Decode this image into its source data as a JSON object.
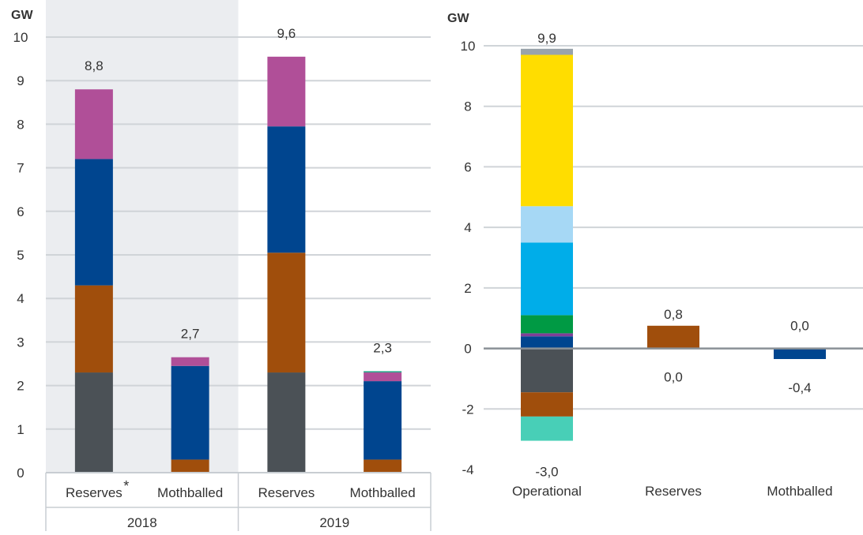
{
  "chart_data": [
    {
      "type": "bar",
      "stacked": true,
      "ylabel": "GW",
      "ylim": [
        0,
        10
      ],
      "yticks": [
        "0",
        "1",
        "2",
        "3",
        "4",
        "5",
        "6",
        "7",
        "8",
        "9",
        "10"
      ],
      "grid": true,
      "categories": [
        "Reserves",
        "Mothballed",
        "Reserves",
        "Mothballed"
      ],
      "category_marks": [
        "*",
        "",
        "",
        ""
      ],
      "groups": [
        "2018",
        "2019"
      ],
      "shaded_group": "2018",
      "totals": [
        "8,8",
        "2,7",
        "9,6",
        "2,3"
      ],
      "series": [
        {
          "color": "#4B5156",
          "values": [
            2.3,
            0.0,
            2.3,
            0.0
          ]
        },
        {
          "color": "#A04E0C",
          "values": [
            2.0,
            0.3,
            2.75,
            0.3
          ]
        },
        {
          "color": "#00458F",
          "values": [
            2.9,
            2.15,
            2.9,
            1.8
          ]
        },
        {
          "color": "#B04F98",
          "values": [
            1.6,
            0.2,
            1.6,
            0.2
          ]
        },
        {
          "color": "#2AA68A",
          "values": [
            0.0,
            0.0,
            0.0,
            0.03
          ]
        }
      ]
    },
    {
      "type": "bar",
      "stacked": true,
      "ylabel": "GW",
      "ylim": [
        -4,
        10
      ],
      "yticks": [
        "-4",
        "-2",
        "0",
        "2",
        "4",
        "6",
        "8",
        "10"
      ],
      "grid": true,
      "categories": [
        "Operational",
        "Reserves",
        "Mothballed"
      ],
      "totals": [
        {
          "top": "9,9",
          "bottom": "-3,0"
        },
        {
          "top": "0,8",
          "bottom": "0,0"
        },
        {
          "top": "0,0",
          "bottom": "-0,4"
        }
      ],
      "series": [
        {
          "color": "#00458F",
          "values": [
            0.4,
            0.0,
            0.0
          ]
        },
        {
          "color": "#7F3F98",
          "values": [
            0.1,
            0.0,
            0.0
          ]
        },
        {
          "color": "#009A44",
          "values": [
            0.6,
            0.0,
            0.0
          ]
        },
        {
          "color": "#00ADE9",
          "values": [
            2.4,
            0.0,
            0.0
          ]
        },
        {
          "color": "#A6D8F5",
          "values": [
            1.2,
            0.0,
            0.0
          ]
        },
        {
          "color": "#FFDD00",
          "values": [
            5.0,
            0.0,
            0.0
          ]
        },
        {
          "color": "#99A3AB",
          "values": [
            0.2,
            0.0,
            0.0
          ]
        },
        {
          "color": "#A04E0C",
          "values": [
            0.0,
            0.75,
            0.0
          ]
        },
        {
          "color": "#4B5156",
          "values": [
            -1.45,
            0.0,
            0.0
          ]
        },
        {
          "color": "#A04E0C",
          "values": [
            -0.8,
            0.0,
            0.0
          ]
        },
        {
          "color": "#48CFB7",
          "values": [
            -0.8,
            0.0,
            0.0
          ]
        },
        {
          "color": "#00458F",
          "values": [
            0.0,
            0.0,
            -0.35
          ]
        }
      ]
    }
  ]
}
